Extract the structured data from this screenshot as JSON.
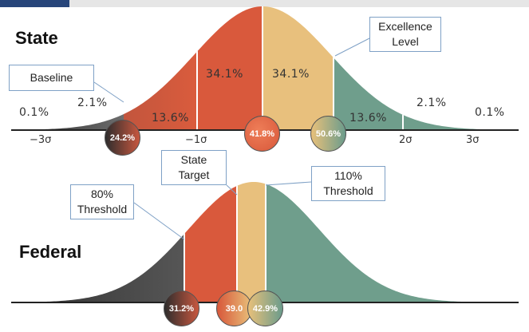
{
  "state": {
    "title": "State",
    "callouts": {
      "baseline": "Baseline",
      "excellence_line1": "Excellence",
      "excellence_line2": "Level"
    },
    "percent_labels": {
      "far_left": "0.1%",
      "left_tail": "2.1%",
      "left_mid": "13.6%",
      "center_left": "34.1%",
      "center_right": "34.1%",
      "right_mid": "13.6%",
      "right_tail": "2.1%",
      "far_right": "0.1%"
    },
    "sigma_labels": {
      "minus3": "−3σ",
      "minus1": "−1σ",
      "plus2": "2σ",
      "plus3": "3σ"
    },
    "markers": [
      {
        "label": "24.2%",
        "color_from": "#2d2d2d",
        "color_to": "#c8573f"
      },
      {
        "label": "41.8%",
        "color_from": "#e06a47",
        "color_to": "#d8573a"
      },
      {
        "label": "50.6%",
        "color_from": "#e8c07a",
        "color_to": "#6b9c8c"
      }
    ]
  },
  "federal": {
    "title": "Federal",
    "callouts": {
      "state_target_line1": "State",
      "state_target_line2": "Target",
      "threshold80_line1": "80%",
      "threshold80_line2": "Threshold",
      "threshold110_line1": "110%",
      "threshold110_line2": "Threshold"
    },
    "markers": [
      {
        "label": "31.2%",
        "color_from": "#2d2d2d",
        "color_to": "#c8573f"
      },
      {
        "label": "39.0",
        "color_from": "#d8573a",
        "color_to": "#e8c07a"
      },
      {
        "label": "42.9%",
        "color_from": "#e8c07a",
        "color_to": "#6b9c8c"
      }
    ]
  },
  "colors": {
    "tail_dark": "#3b3b3b",
    "red": "#d9593c",
    "tan": "#e8c07d",
    "green": "#6f9e8c",
    "callout_border": "#7fa1c6",
    "brand_bar": "#27457a"
  }
}
